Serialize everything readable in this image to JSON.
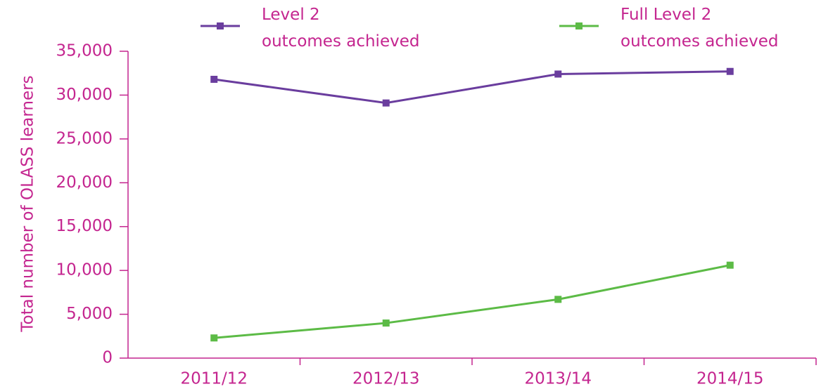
{
  "chart_data": {
    "type": "line",
    "y_label": "Total number of OLASS learners",
    "categories": [
      "2011/12",
      "2012/13",
      "2013/14",
      "2014/15"
    ],
    "series": [
      {
        "name": "Level 2\noutcomes achieved",
        "color": "#6a3d9e",
        "values": [
          31800,
          29100,
          32400,
          32700
        ]
      },
      {
        "name": "Full Level 2\noutcomes achieved",
        "color": "#5cbb46",
        "values": [
          2300,
          4000,
          6700,
          10600
        ]
      }
    ],
    "ylim": [
      0,
      35000
    ],
    "yticks": [
      0,
      {
        "value": 5000,
        "label": "5,000"
      },
      {
        "value": 10000,
        "label": "10,000"
      },
      {
        "value": 15000,
        "label": "15,000"
      },
      {
        "value": 20000,
        "label": "20,000"
      },
      {
        "value": 25000,
        "label": "25,000"
      },
      {
        "value": 30000,
        "label": "30,000"
      },
      {
        "value": 35000,
        "label": "35,000"
      }
    ],
    "axis_color": "#c4258f",
    "grid": false
  }
}
